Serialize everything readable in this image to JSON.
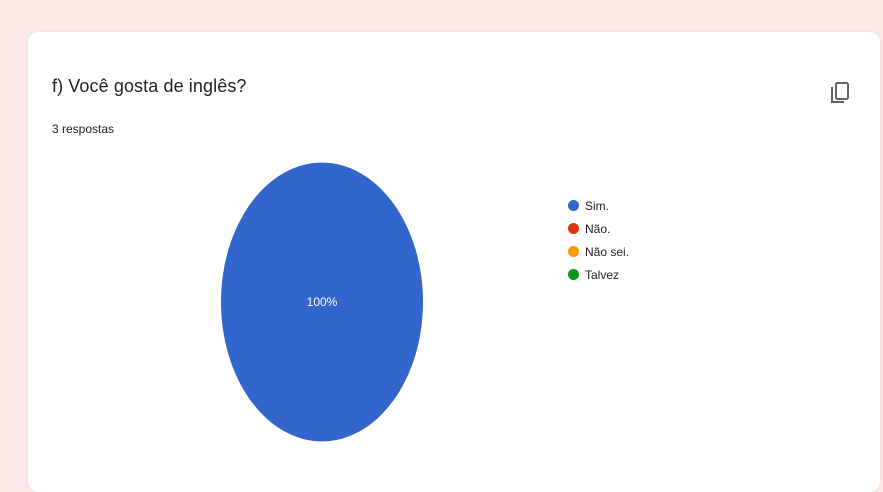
{
  "question": {
    "title": "f) Você gosta de inglês?",
    "responses": "3 respostas"
  },
  "toolbar": {
    "copy_icon": "copy-icon"
  },
  "colors": {
    "page_background": "#f9e8e6",
    "card_background": "#ffffff"
  },
  "chart_data": {
    "type": "pie",
    "categories": [
      "Sim.",
      "Não.",
      "Não sei.",
      "Talvez"
    ],
    "values": [
      100,
      0,
      0,
      0
    ],
    "colors": [
      "#3366cc",
      "#dc3912",
      "#ff9900",
      "#109618"
    ],
    "slice_labels": [
      "100%"
    ],
    "legend_position": "right"
  }
}
